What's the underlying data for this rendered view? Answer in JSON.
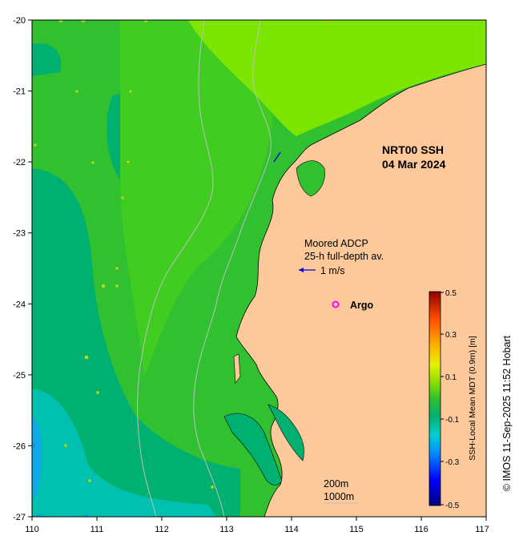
{
  "map": {
    "title_line1": "NRT00 SSH",
    "title_line2": "04 Mar 2024",
    "lon_ticks": [
      "110",
      "111",
      "112",
      "113",
      "114",
      "115",
      "116",
      "117"
    ],
    "lat_ticks": [
      "-20",
      "-21",
      "-22",
      "-23",
      "-24",
      "-25",
      "-26",
      "-27"
    ],
    "adcp_label_line1": "Moored ADCP",
    "adcp_label_line2": "25-h full-depth av.",
    "vector_label": "1 m/s",
    "argo_label": "Argo",
    "contour_200": "200m",
    "contour_1000": "1000m",
    "credit": "© IMOS 11-Sep-2025 11:52 Hobart",
    "colors": {
      "land": "#fdc99a",
      "ssh_high": "#7ce600",
      "ssh_mid": "#30c030",
      "ssh_low": "#00b070",
      "ssh_lower": "#00c0b0",
      "argo": "#ff00ff"
    }
  },
  "colorbar": {
    "title": "SSH-Local Mean MDT (0.9m) [m]",
    "labels": [
      "0.5",
      "0.3",
      "0.1",
      "-0.1",
      "-0.3",
      "-0.5"
    ]
  }
}
